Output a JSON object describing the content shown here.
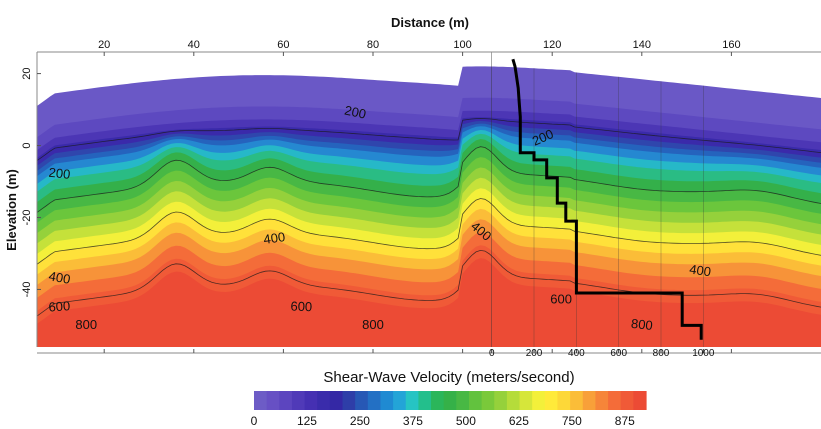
{
  "chart_data": {
    "type": "heatmap",
    "title": "",
    "xlabel": "Distance (m)",
    "ylabel": "Elevation (m)",
    "xlim": [
      5,
      180
    ],
    "ylim": [
      -56,
      26
    ],
    "xticks": [
      {
        "value": 20,
        "label": "20"
      },
      {
        "value": 40,
        "label": "40"
      },
      {
        "value": 60,
        "label": "60"
      },
      {
        "value": 80,
        "label": "80"
      },
      {
        "value": 100,
        "label": "100"
      },
      {
        "value": 120,
        "label": "120"
      },
      {
        "value": 140,
        "label": "140"
      },
      {
        "value": 160,
        "label": "160"
      }
    ],
    "yticks": [
      {
        "value": 20,
        "label": "20"
      },
      {
        "value": 0,
        "label": "0"
      },
      {
        "value": -20,
        "label": "-20"
      },
      {
        "value": -40,
        "label": "-40"
      }
    ],
    "contour_labels": [
      {
        "text": "200",
        "x": 118,
        "y": 2
      },
      {
        "text": "200",
        "x": 76,
        "y": 9
      },
      {
        "text": "200",
        "x": 10,
        "y": -8
      },
      {
        "text": "400",
        "x": 58,
        "y": -26
      },
      {
        "text": "400",
        "x": 104,
        "y": -24
      },
      {
        "text": "400",
        "x": 10,
        "y": -37
      },
      {
        "text": "400",
        "x": 153,
        "y": -35
      },
      {
        "text": "600",
        "x": 122,
        "y": -43
      },
      {
        "text": "600",
        "x": 10,
        "y": -45
      },
      {
        "text": "600",
        "x": 64,
        "y": -45
      },
      {
        "text": "800",
        "x": 140,
        "y": -50
      },
      {
        "text": "800",
        "x": 16,
        "y": -50
      },
      {
        "text": "800",
        "x": 80,
        "y": -50
      }
    ],
    "velocity_profile": {
      "origin_x": 106.5,
      "axis_ticks": [
        {
          "value": 0,
          "label": "0"
        },
        {
          "value": 200,
          "label": "200"
        },
        {
          "value": 400,
          "label": "400"
        },
        {
          "value": 600,
          "label": "600"
        },
        {
          "value": 800,
          "label": "800"
        },
        {
          "value": 1000,
          "label": "1000"
        }
      ],
      "points": [
        {
          "v": 100,
          "elev": 24
        },
        {
          "v": 110,
          "elev": 22
        },
        {
          "v": 115,
          "elev": 20
        },
        {
          "v": 125,
          "elev": 16
        },
        {
          "v": 130,
          "elev": 12
        },
        {
          "v": 135,
          "elev": 8
        },
        {
          "v": 135,
          "elev": -2
        },
        {
          "v": 200,
          "elev": -2
        },
        {
          "v": 200,
          "elev": -4
        },
        {
          "v": 260,
          "elev": -4
        },
        {
          "v": 260,
          "elev": -9
        },
        {
          "v": 310,
          "elev": -9
        },
        {
          "v": 310,
          "elev": -16
        },
        {
          "v": 350,
          "elev": -16
        },
        {
          "v": 350,
          "elev": -21
        },
        {
          "v": 400,
          "elev": -21
        },
        {
          "v": 400,
          "elev": -41
        },
        {
          "v": 900,
          "elev": -41
        },
        {
          "v": 900,
          "elev": -50
        },
        {
          "v": 990,
          "elev": -50
        },
        {
          "v": 990,
          "elev": -54
        }
      ]
    },
    "colorbar": {
      "title": "Shear-Wave Velocity (meters/second)",
      "min": 0,
      "max": 925,
      "ticks": [
        {
          "value": 0,
          "label": "0"
        },
        {
          "value": 125,
          "label": "125"
        },
        {
          "value": 250,
          "label": "250"
        },
        {
          "value": 375,
          "label": "375"
        },
        {
          "value": 500,
          "label": "500"
        },
        {
          "value": 625,
          "label": "625"
        },
        {
          "value": 750,
          "label": "750"
        },
        {
          "value": 875,
          "label": "875"
        }
      ],
      "colors": [
        "#6d5cc6",
        "#6750c4",
        "#5c45bf",
        "#503ab8",
        "#4530b2",
        "#3a2cab",
        "#3428a5",
        "#2e3ea8",
        "#2758b5",
        "#2370c4",
        "#1f8ad2",
        "#23a4d7",
        "#26c4c3",
        "#23bf8c",
        "#2bb65a",
        "#35b148",
        "#48b844",
        "#62c23e",
        "#7ac93a",
        "#95d13b",
        "#b5dc3a",
        "#d6e63a",
        "#f3f03a",
        "#ffea3a",
        "#fdd838",
        "#fbbd38",
        "#f8a039",
        "#f68539",
        "#f46c39",
        "#f05a37",
        "#ec4b35"
      ]
    },
    "velocity_layers": [
      {
        "value": 110,
        "color": "#5d49c0"
      },
      {
        "value": 160,
        "color": "#4c36b5"
      },
      {
        "value": 190,
        "color": "#3a2aaa"
      },
      {
        "value": 220,
        "color": "#2f46ad"
      },
      {
        "value": 240,
        "color": "#2563bd"
      },
      {
        "value": 260,
        "color": "#2588d1"
      },
      {
        "value": 290,
        "color": "#26b8c8"
      },
      {
        "value": 320,
        "color": "#2abc84"
      },
      {
        "value": 360,
        "color": "#34b04a"
      },
      {
        "value": 400,
        "color": "#48b844"
      },
      {
        "value": 440,
        "color": "#6bc63c"
      },
      {
        "value": 480,
        "color": "#95d13b"
      },
      {
        "value": 520,
        "color": "#c5e13a"
      },
      {
        "value": 560,
        "color": "#f3f03a"
      },
      {
        "value": 600,
        "color": "#ffe13a"
      },
      {
        "value": 640,
        "color": "#fbbd38"
      },
      {
        "value": 680,
        "color": "#f79339"
      },
      {
        "value": 730,
        "color": "#f46c39"
      },
      {
        "value": 780,
        "color": "#f05a37"
      },
      {
        "value": 830,
        "color": "#ec4b35"
      }
    ]
  }
}
